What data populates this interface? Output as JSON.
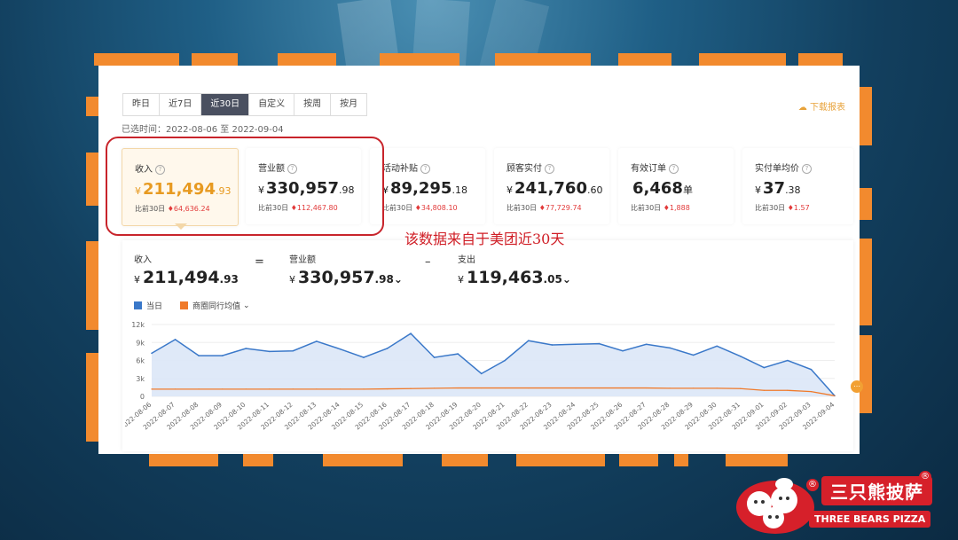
{
  "tabs": [
    "昨日",
    "近7日",
    "近30日",
    "自定义",
    "按周",
    "按月"
  ],
  "active_tab": "近30日",
  "download_label": "下载报表",
  "range_text": "已选时间：2022-08-06 至 2022-09-04",
  "kpis": [
    {
      "label": "收入",
      "yen": "¥",
      "int": "211,494",
      "dec": ".93",
      "cmp_prefix": "比前30日",
      "cmp_value": "64,636.24"
    },
    {
      "label": "营业额",
      "yen": "¥",
      "int": "330,957",
      "dec": ".98",
      "cmp_prefix": "比前30日",
      "cmp_value": "112,467.80"
    },
    {
      "label": "活动补贴",
      "yen": "¥",
      "int": "89,295",
      "dec": ".18",
      "cmp_prefix": "比前30日",
      "cmp_value": "34,808.10"
    },
    {
      "label": "顾客实付",
      "yen": "¥",
      "int": "241,760",
      "dec": ".60",
      "cmp_prefix": "比前30日",
      "cmp_value": "77,729.74"
    },
    {
      "label": "有效订单",
      "yen": "",
      "int": "6,468",
      "dec": "单",
      "cmp_prefix": "比前30日",
      "cmp_value": "1,888"
    },
    {
      "label": "实付单均价",
      "yen": "¥",
      "int": "37",
      "dec": ".38",
      "cmp_prefix": "比前30日",
      "cmp_value": "1.57"
    }
  ],
  "annotation": "该数据来自于美团近30天",
  "summary": {
    "income": {
      "label": "收入",
      "yen": "¥",
      "int": "211,494",
      "dec": ".93"
    },
    "op_eq": "=",
    "revenue": {
      "label": "营业额",
      "yen": "¥",
      "int": "330,957",
      "dec": ".98",
      "chev": "⌄"
    },
    "op_minus": "–",
    "expense": {
      "label": "支出",
      "yen": "¥",
      "int": "119,463",
      "dec": ".05",
      "chev": "⌄"
    }
  },
  "legend": {
    "today": "当日",
    "avg": "商圈同行均值",
    "avg_chev": "⌄"
  },
  "colors": {
    "accent": "#e79a21",
    "series_today": "#3a78c9",
    "series_avg": "#f07a2a",
    "fill": "#dbe7f7",
    "up": "#e23a3a"
  },
  "logo": {
    "cn": "三只熊披萨",
    "en": "THREE BEARS PIZZA",
    "mark": "®"
  },
  "chart_data": {
    "type": "area",
    "categories": [
      "2022-08-06",
      "2022-08-07",
      "2022-08-08",
      "2022-08-09",
      "2022-08-10",
      "2022-08-11",
      "2022-08-12",
      "2022-08-13",
      "2022-08-14",
      "2022-08-15",
      "2022-08-16",
      "2022-08-17",
      "2022-08-18",
      "2022-08-19",
      "2022-08-20",
      "2022-08-21",
      "2022-08-22",
      "2022-08-23",
      "2022-08-24",
      "2022-08-25",
      "2022-08-26",
      "2022-08-27",
      "2022-08-28",
      "2022-08-29",
      "2022-08-30",
      "2022-08-31",
      "2022-09-01",
      "2022-09-02",
      "2022-09-03",
      "2022-09-04"
    ],
    "yticks": [
      "0",
      "3k",
      "6k",
      "9k",
      "12k"
    ],
    "ylim": [
      0,
      12000
    ],
    "series": [
      {
        "name": "当日",
        "values": [
          7200,
          9500,
          6800,
          6800,
          8000,
          7500,
          7600,
          9200,
          7900,
          6500,
          8000,
          10500,
          6500,
          7100,
          3800,
          6000,
          9300,
          8600,
          8700,
          8800,
          7600,
          8700,
          8100,
          6900,
          8400,
          6700,
          4800,
          6000,
          4500,
          100
        ]
      },
      {
        "name": "商圈同行均值",
        "values": [
          1200,
          1200,
          1200,
          1200,
          1200,
          1200,
          1200,
          1200,
          1200,
          1200,
          1250,
          1300,
          1350,
          1400,
          1400,
          1400,
          1400,
          1400,
          1400,
          1400,
          1400,
          1400,
          1350,
          1350,
          1350,
          1300,
          1000,
          1000,
          800,
          100
        ]
      }
    ]
  }
}
